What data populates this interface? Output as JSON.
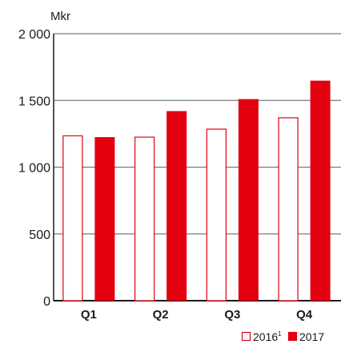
{
  "chart_data": {
    "type": "bar",
    "unit_label": "Mkr",
    "categories": [
      "Q1",
      "Q2",
      "Q3",
      "Q4"
    ],
    "series": [
      {
        "name": "2016",
        "name_sup": "1",
        "style": "outline",
        "values": [
          1235,
          1225,
          1285,
          1370
        ]
      },
      {
        "name": "2017",
        "style": "filled",
        "values": [
          1225,
          1420,
          1510,
          1648
        ]
      }
    ],
    "ylim": [
      0,
      2000
    ],
    "yticks": [
      {
        "value": 0,
        "label": "0"
      },
      {
        "value": 500,
        "label": "500"
      },
      {
        "value": 1000,
        "label": "1 000"
      },
      {
        "value": 1500,
        "label": "1 500"
      },
      {
        "value": 2000,
        "label": "2 000"
      }
    ],
    "grid": true,
    "legend_position": "bottom-right",
    "colors": {
      "accent": "#e3000f",
      "grid": "#7a7a7a",
      "axis": "#1a1a1a"
    }
  }
}
